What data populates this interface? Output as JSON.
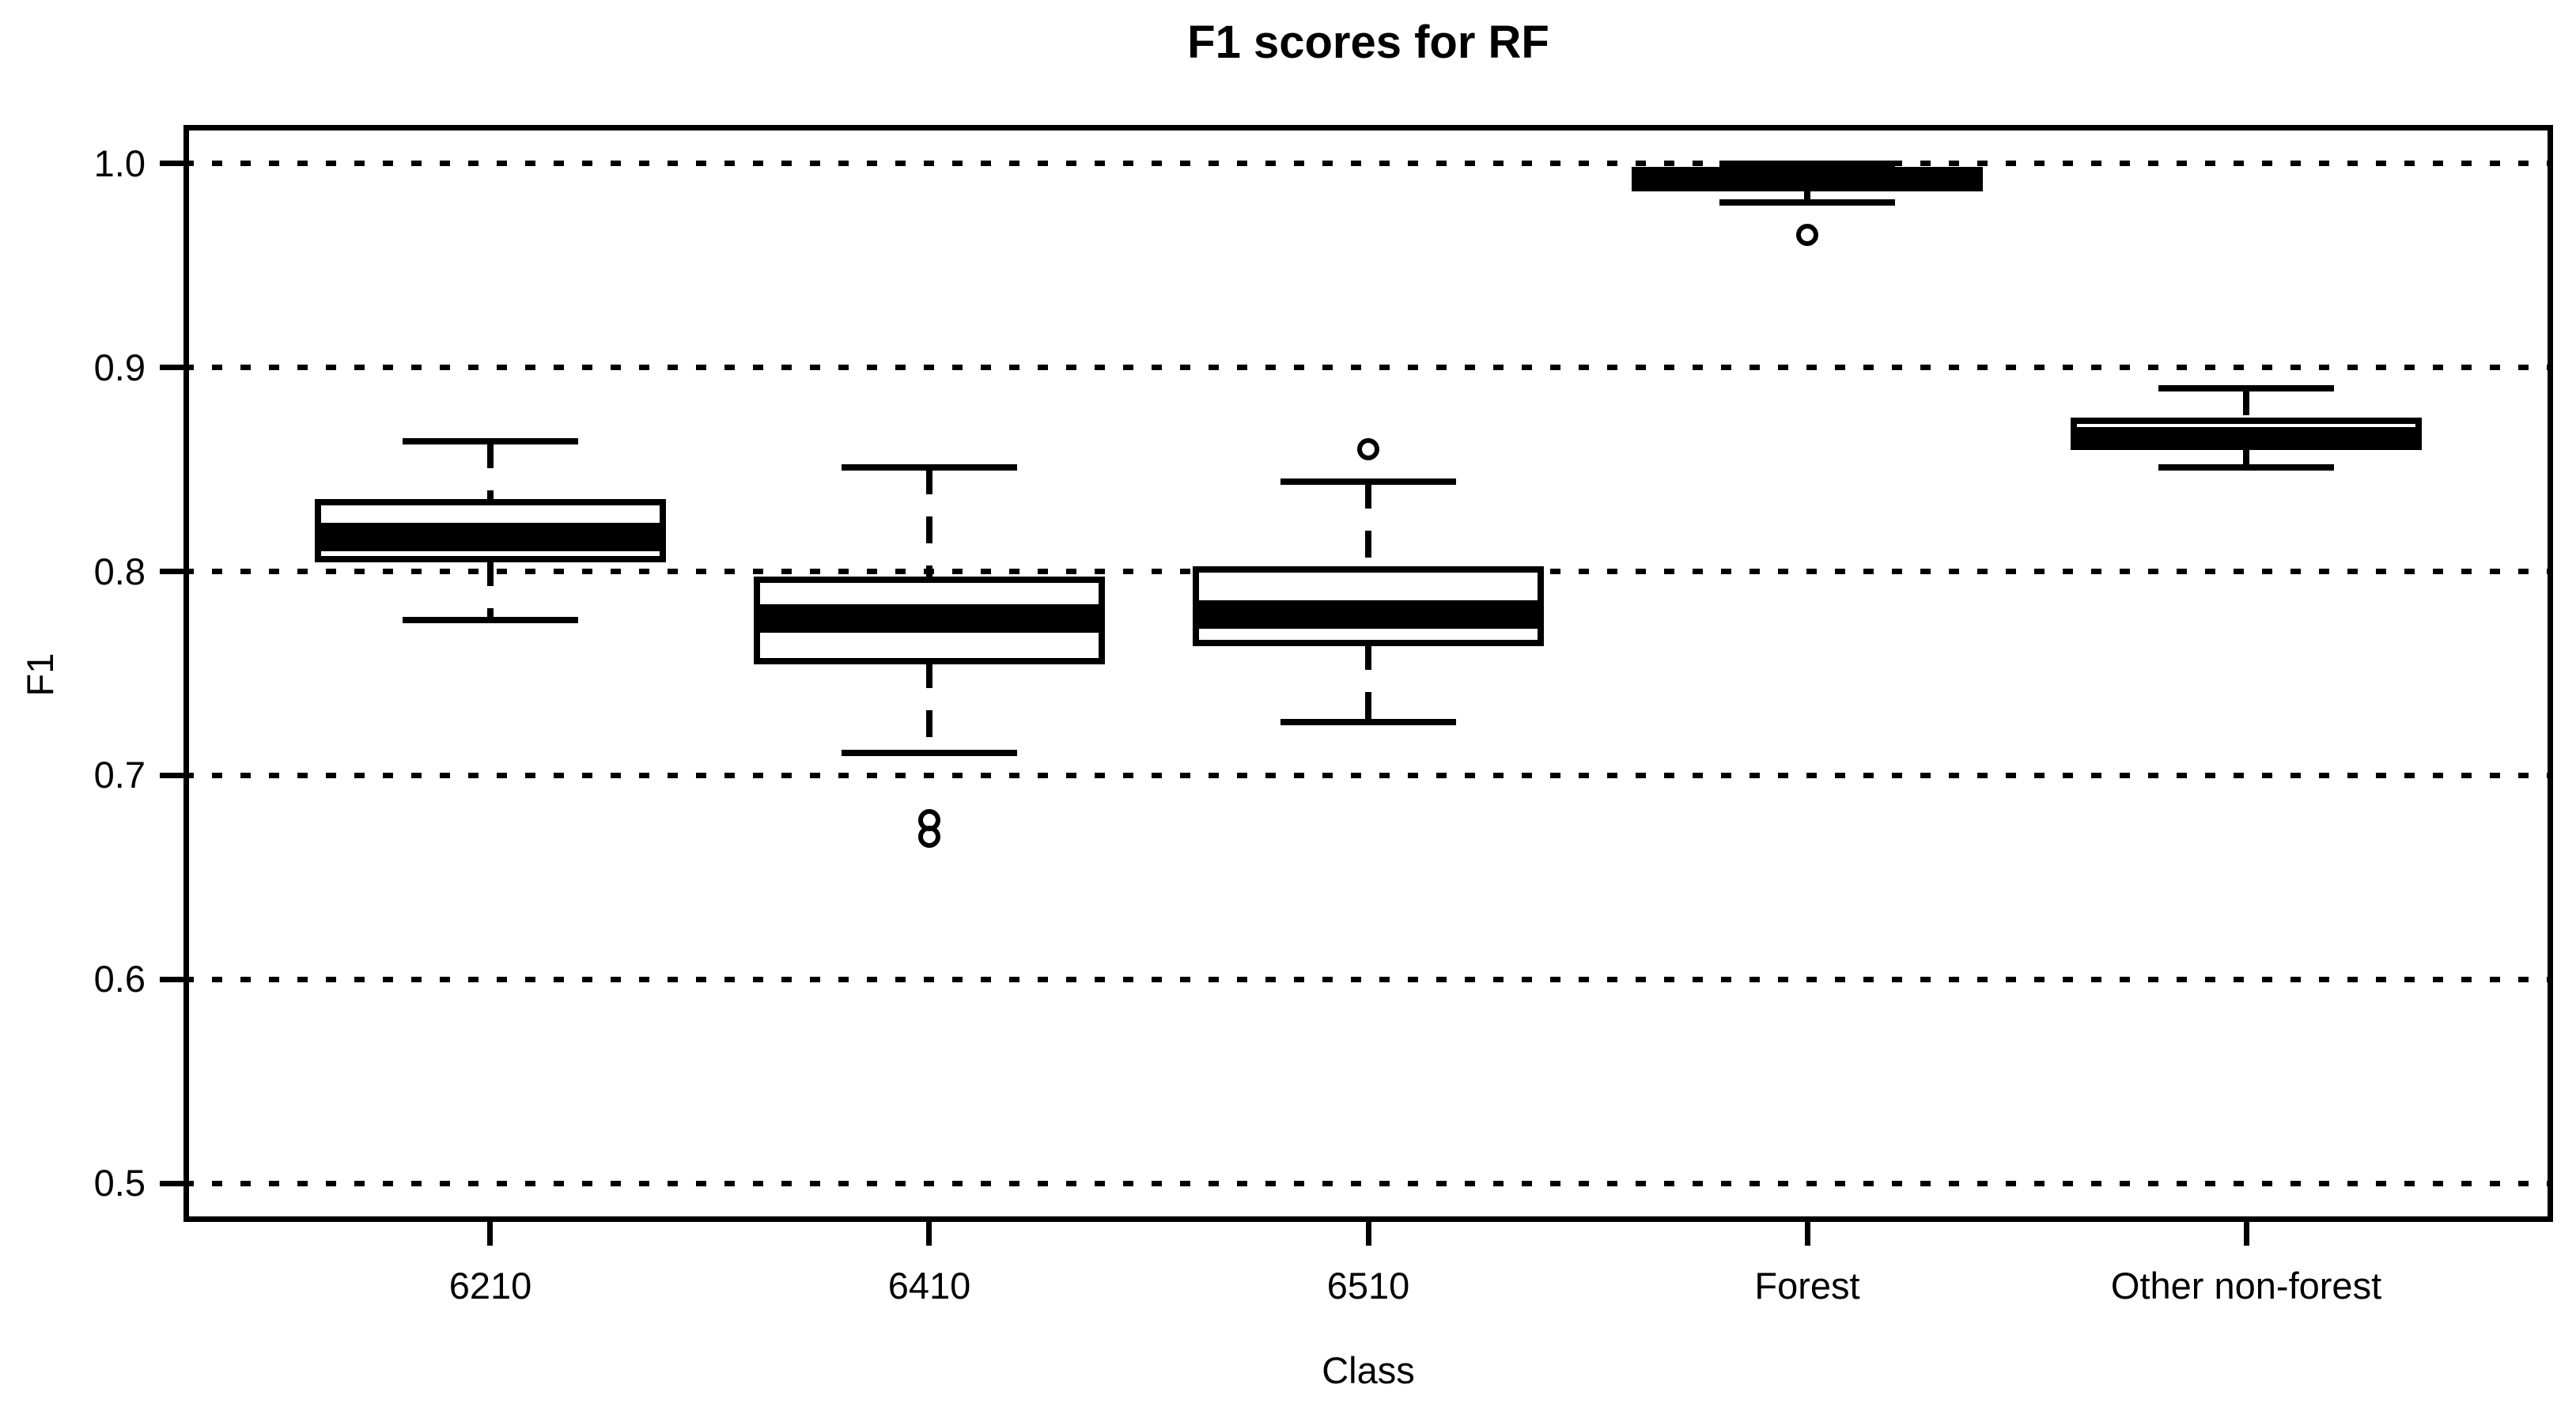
{
  "chart_data": {
    "type": "boxplot",
    "title": "F1 scores for RF",
    "xlabel": "Class",
    "ylabel": "F1",
    "categories": [
      "6210",
      "6410",
      "6510",
      "Forest",
      "Other non-forest"
    ],
    "y_tick_labels": [
      "1.0",
      "0.9",
      "0.8",
      "0.7",
      "0.6",
      "0.5"
    ],
    "y_tick_values": [
      1.0,
      0.9,
      0.8,
      0.7,
      0.6,
      0.5
    ],
    "ylim": [
      0.481,
      1.019
    ],
    "grid": {
      "style": "dotted",
      "orientation": "horizontal",
      "legend": "none"
    },
    "colors": {
      "line": "#000000",
      "box_fill": "#ffffff",
      "background": "#ffffff"
    },
    "boxes": [
      {
        "category": "6210",
        "whisker_low": 0.776,
        "q1": 0.806,
        "median": 0.82,
        "q3": 0.834,
        "whisker_high": 0.864,
        "outliers": []
      },
      {
        "category": "6410",
        "whisker_low": 0.711,
        "q1": 0.756,
        "median": 0.78,
        "q3": 0.796,
        "whisker_high": 0.851,
        "outliers": [
          0.678,
          0.67
        ]
      },
      {
        "category": "6510",
        "whisker_low": 0.726,
        "q1": 0.765,
        "median": 0.782,
        "q3": 0.801,
        "whisker_high": 0.844,
        "outliers": [
          0.86
        ]
      },
      {
        "category": "Forest",
        "whisker_low": 0.981,
        "q1": 0.988,
        "median": 0.992,
        "q3": 0.997,
        "whisker_high": 1.0,
        "outliers": [
          0.965
        ]
      },
      {
        "category": "Other non-forest",
        "whisker_low": 0.851,
        "q1": 0.861,
        "median": 0.867,
        "q3": 0.874,
        "whisker_high": 0.89,
        "outliers": []
      }
    ]
  }
}
